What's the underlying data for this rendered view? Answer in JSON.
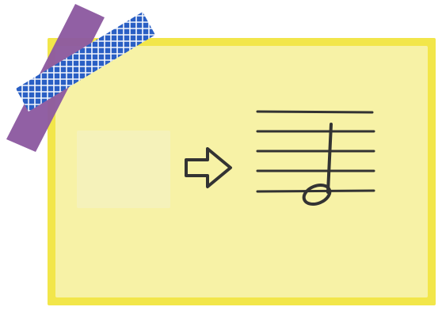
{
  "card": {
    "paper_color": "#f7f2a6",
    "border_color": "#f2e64a"
  },
  "tape": {
    "purple_color": "#8c5aa0",
    "blue_color": "#2a5fc4",
    "blue_grid_color": "#ffffff"
  },
  "icons": {
    "arrow": "right-arrow-icon",
    "note": "half-note-icon"
  },
  "staff": {
    "line_count": 5,
    "line_color": "#333333"
  },
  "blank_answer_box": {
    "color": "#f5f2ba"
  }
}
